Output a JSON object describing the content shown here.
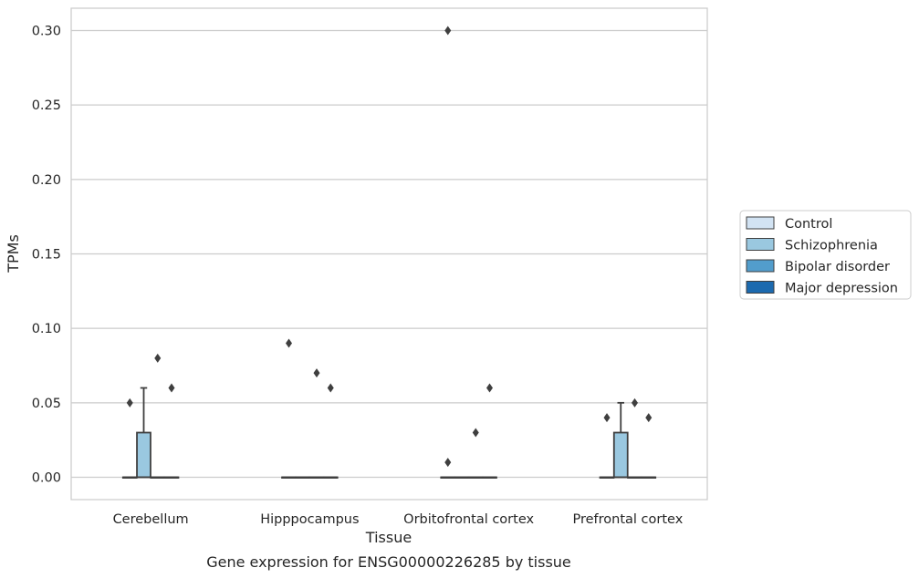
{
  "chart_data": {
    "type": "boxplot",
    "title": "Gene expression for ENSG00000226285 by tissue",
    "xlabel": "Tissue",
    "ylabel": "TPMs",
    "ylim": [
      -0.015,
      0.315
    ],
    "yticks": [
      0.0,
      0.05,
      0.1,
      0.15,
      0.2,
      0.25,
      0.3
    ],
    "ytick_labels": [
      "0.00",
      "0.05",
      "0.10",
      "0.15",
      "0.20",
      "0.25",
      "0.30"
    ],
    "grid": "horizontal",
    "legend_position": "right",
    "categories": [
      "Cerebellum",
      "Hipppocampus",
      "Orbitofrontal cortex",
      "Prefrontal cortex"
    ],
    "series": [
      {
        "name": "Control",
        "color": "#d2e3f3",
        "boxes": [
          {
            "q1": 0,
            "median": 0,
            "q3": 0,
            "whisker_low": 0,
            "whisker_high": 0,
            "outliers": [
              0.05
            ]
          },
          {
            "q1": 0,
            "median": 0,
            "q3": 0,
            "whisker_low": 0,
            "whisker_high": 0,
            "outliers": [
              0.09
            ]
          },
          {
            "q1": 0,
            "median": 0,
            "q3": 0,
            "whisker_low": 0,
            "whisker_high": 0,
            "outliers": [
              0.01,
              0.3
            ]
          },
          {
            "q1": 0,
            "median": 0,
            "q3": 0,
            "whisker_low": 0,
            "whisker_high": 0,
            "outliers": [
              0.04
            ]
          }
        ]
      },
      {
        "name": "Schizophrenia",
        "color": "#9ac8e0",
        "boxes": [
          {
            "q1": 0,
            "median": 0,
            "q3": 0.03,
            "whisker_low": 0,
            "whisker_high": 0.06,
            "outliers": []
          },
          {
            "q1": 0,
            "median": 0,
            "q3": 0,
            "whisker_low": 0,
            "whisker_high": 0,
            "outliers": []
          },
          {
            "q1": 0,
            "median": 0,
            "q3": 0,
            "whisker_low": 0,
            "whisker_high": 0,
            "outliers": []
          },
          {
            "q1": 0,
            "median": 0,
            "q3": 0.03,
            "whisker_low": 0,
            "whisker_high": 0.05,
            "outliers": []
          }
        ]
      },
      {
        "name": "Bipolar disorder",
        "color": "#529dcc",
        "boxes": [
          {
            "q1": 0,
            "median": 0,
            "q3": 0,
            "whisker_low": 0,
            "whisker_high": 0,
            "outliers": [
              0.08
            ]
          },
          {
            "q1": 0,
            "median": 0,
            "q3": 0,
            "whisker_low": 0,
            "whisker_high": 0,
            "outliers": [
              0.07
            ]
          },
          {
            "q1": 0,
            "median": 0,
            "q3": 0,
            "whisker_low": 0,
            "whisker_high": 0,
            "outliers": [
              0.03
            ]
          },
          {
            "q1": 0,
            "median": 0,
            "q3": 0,
            "whisker_low": 0,
            "whisker_high": 0,
            "outliers": [
              0.05
            ]
          }
        ]
      },
      {
        "name": "Major depression",
        "color": "#1c6aaf",
        "boxes": [
          {
            "q1": 0,
            "median": 0,
            "q3": 0,
            "whisker_low": 0,
            "whisker_high": 0,
            "outliers": [
              0.06
            ]
          },
          {
            "q1": 0,
            "median": 0,
            "q3": 0,
            "whisker_low": 0,
            "whisker_high": 0,
            "outliers": [
              0.06
            ]
          },
          {
            "q1": 0,
            "median": 0,
            "q3": 0,
            "whisker_low": 0,
            "whisker_high": 0,
            "outliers": [
              0.06
            ]
          },
          {
            "q1": 0,
            "median": 0,
            "q3": 0,
            "whisker_low": 0,
            "whisker_high": 0,
            "outliers": [
              0.04
            ]
          }
        ]
      }
    ]
  }
}
